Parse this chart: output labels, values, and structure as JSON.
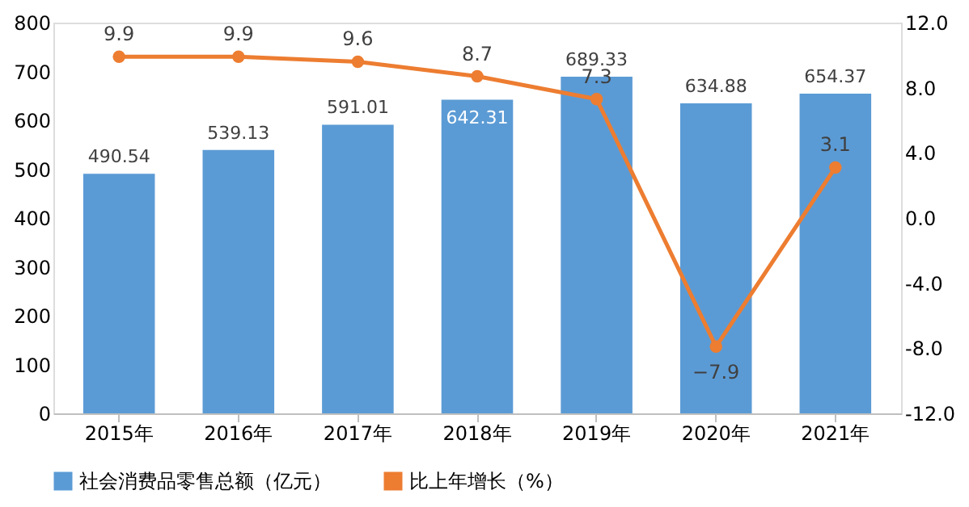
{
  "chart_data": {
    "type": "bar",
    "categories": [
      "2015年",
      "2016年",
      "2017年",
      "2018年",
      "2019年",
      "2020年",
      "2021年"
    ],
    "series": [
      {
        "name": "社会消费品零售总额（亿元）",
        "color": "#5b9bd5",
        "values": [
          490.54,
          539.13,
          591.01,
          642.31,
          689.33,
          634.88,
          654.37
        ]
      },
      {
        "name": "比上年增长（%）",
        "color": "#ed7d31",
        "type": "line",
        "axis": "y2",
        "marker": "circle",
        "values": [
          9.9,
          9.9,
          9.6,
          8.7,
          7.3,
          -7.9,
          3.1
        ]
      }
    ],
    "ylim": [
      0,
      800
    ],
    "yticks": [
      0,
      100,
      200,
      300,
      400,
      500,
      600,
      700,
      800
    ],
    "y2lim": [
      -12,
      12
    ],
    "y2ticks": [
      {
        "value": -12,
        "label": "-12.0"
      },
      {
        "value": -8,
        "label": "-8.0"
      },
      {
        "value": -4,
        "label": "-4.0"
      },
      {
        "value": 0,
        "label": "0.0"
      },
      {
        "value": 4,
        "label": "4.0"
      },
      {
        "value": 8,
        "label": "8.0"
      },
      {
        "value": 12,
        "label": "12.0"
      }
    ],
    "data_labels": true,
    "legend": "bottom",
    "grid": false
  }
}
